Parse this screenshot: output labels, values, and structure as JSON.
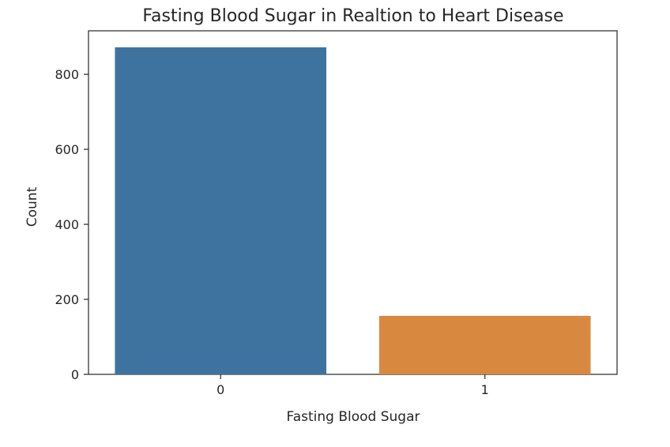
{
  "chart_data": {
    "type": "bar",
    "title": "Fasting Blood Sugar in Realtion to Heart Disease",
    "xlabel": "Fasting Blood Sugar",
    "ylabel": "Count",
    "categories": [
      "0",
      "1"
    ],
    "values": [
      872,
      156
    ],
    "ylim": [
      0,
      916
    ],
    "yticks": [
      0,
      200,
      400,
      600,
      800
    ],
    "colors": [
      "#3e73a0",
      "#d98840"
    ],
    "grid": false,
    "legend": "none"
  }
}
